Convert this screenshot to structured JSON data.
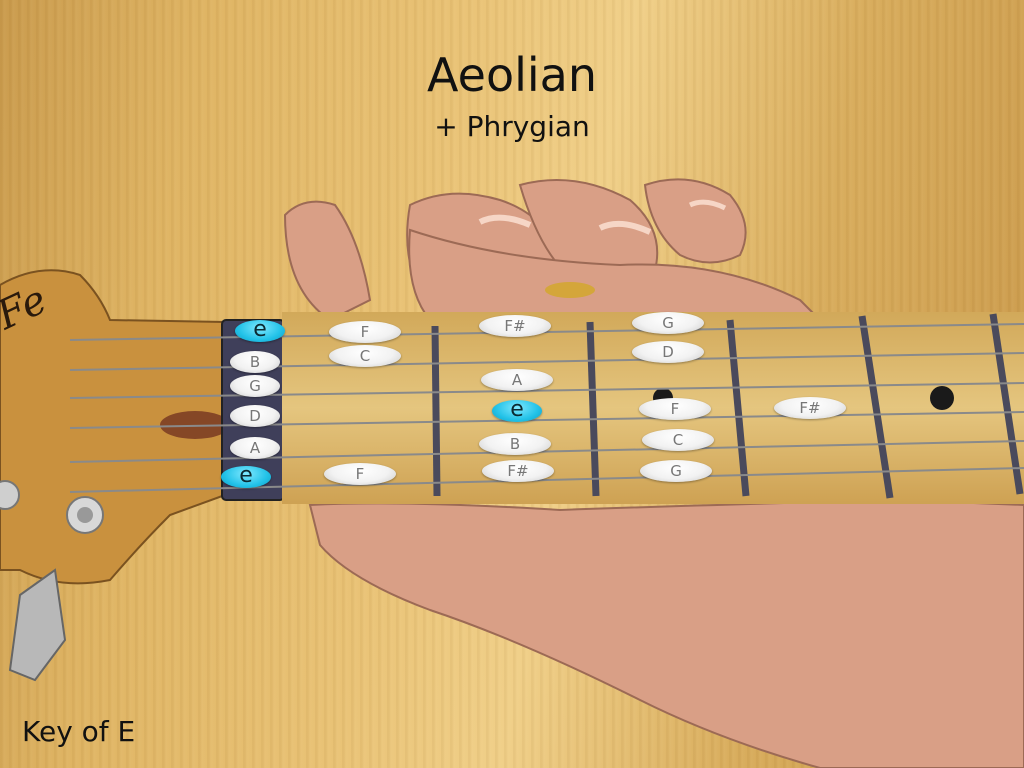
{
  "title": "Aeolian",
  "subtitle": "+ Phrygian",
  "key_label": "Key of E",
  "colors": {
    "root_note": "#22c2e8",
    "note": "#f2f2f2",
    "note_text": "#777777"
  },
  "open_strings": [
    "e",
    "B",
    "G",
    "D",
    "A",
    "e"
  ],
  "fret_notes": [
    [
      "F",
      "F#",
      "G"
    ],
    [
      "C",
      "D"
    ],
    [
      "A"
    ],
    [
      "e",
      "F",
      "F#"
    ],
    [
      "B",
      "C"
    ],
    [
      "F",
      "F#",
      "G"
    ]
  ]
}
